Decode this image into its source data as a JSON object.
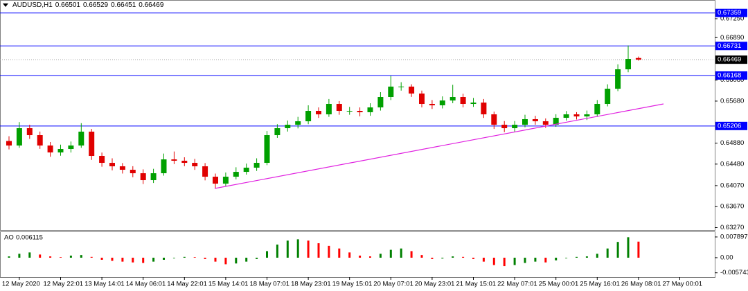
{
  "chart_data": {
    "type": "candlestick",
    "title": "AUDUSD,H1",
    "categories": [
      null,
      "12 May 2020",
      null,
      null,
      null,
      "12 May 22:01",
      null,
      null,
      null,
      "13 May 14:01",
      null,
      null,
      null,
      "14 May 06:01",
      null,
      null,
      null,
      "14 May 22:01",
      null,
      null,
      null,
      "15 May 14:01",
      null,
      null,
      null,
      "18 May 07:01",
      null,
      null,
      null,
      "18 May 23:01",
      null,
      null,
      null,
      "19 May 15:01",
      null,
      null,
      null,
      "20 May 07:01",
      null,
      null,
      null,
      "20 May 23:01",
      null,
      null,
      null,
      "21 May 15:01",
      null,
      null,
      null,
      "22 May 07:01",
      null,
      null,
      null,
      "25 May 00:01",
      null,
      null,
      null,
      "25 May 16:01",
      null,
      null,
      null,
      "26 May 08:01",
      null,
      null,
      null,
      "27 May 00:01"
    ],
    "open": [
      0.6492,
      0.64834,
      0.65164,
      0.65032,
      0.64834,
      0.64702,
      0.64768,
      0.64834,
      0.65098,
      0.64636,
      0.64504,
      0.64438,
      0.64372,
      0.64306,
      0.64174,
      0.64306,
      0.6457,
      0.64544,
      0.64504,
      0.64438,
      0.6424,
      0.64108,
      0.6424,
      0.64332,
      0.64412,
      0.64504,
      0.65032,
      0.65164,
      0.6523,
      0.65296,
      0.65494,
      0.65428,
      0.65626,
      0.65494,
      0.65494,
      0.65468,
      0.6556,
      0.65758,
      0.65956,
      0.65956,
      0.65824,
      0.65626,
      0.656,
      0.65692,
      0.65758,
      0.65626,
      0.65652,
      0.65428,
      0.6523,
      0.65164,
      0.6523,
      0.65336,
      0.65296,
      0.6523,
      0.65362,
      0.65428,
      0.65388,
      0.65428,
      0.65626,
      0.65916,
      0.66286,
      0.66501,
      null,
      null,
      null,
      null
    ],
    "high": [
      0.6501,
      0.6528,
      0.6523,
      0.651,
      0.649,
      0.6485,
      0.6491,
      0.6526,
      0.6515,
      0.647,
      0.6459,
      0.645,
      0.6444,
      0.6438,
      0.6439,
      0.6468,
      0.6472,
      0.6461,
      0.6458,
      0.645,
      0.643,
      0.6432,
      0.6442,
      0.6449,
      0.6459,
      0.6511,
      0.6524,
      0.6531,
      0.6538,
      0.656,
      0.6556,
      0.6572,
      0.6568,
      0.6557,
      0.6556,
      0.6564,
      0.6585,
      0.6616,
      0.6604,
      0.66,
      0.6588,
      0.657,
      0.6577,
      0.6599,
      0.6582,
      0.6574,
      0.6572,
      0.6548,
      0.653,
      0.653,
      0.6542,
      0.654,
      0.6535,
      0.6543,
      0.6549,
      0.6547,
      0.655,
      0.657,
      0.66,
      0.6638,
      0.6674,
      0.66529,
      null,
      null,
      null,
      null
    ],
    "low": [
      0.6476,
      0.6479,
      0.6496,
      0.6477,
      0.6462,
      0.6464,
      0.647,
      0.6479,
      0.6456,
      0.6443,
      0.6436,
      0.643,
      0.6423,
      0.641,
      0.6412,
      0.6426,
      0.6448,
      0.6444,
      0.6437,
      0.6417,
      0.6402,
      0.6406,
      0.6419,
      0.6428,
      0.6435,
      0.6446,
      0.6498,
      0.651,
      0.6516,
      0.6524,
      0.6536,
      0.6538,
      0.6542,
      0.6542,
      0.6539,
      0.654,
      0.655,
      0.657,
      0.6588,
      0.6576,
      0.6556,
      0.6553,
      0.6554,
      0.6564,
      0.6556,
      0.6557,
      0.6536,
      0.6515,
      0.6509,
      0.651,
      0.6518,
      0.6523,
      0.6517,
      0.6519,
      0.6531,
      0.6533,
      0.6532,
      0.6538,
      0.6558,
      0.6587,
      0.6623,
      0.66451,
      null,
      null,
      null,
      null
    ],
    "close": [
      0.64834,
      0.65164,
      0.65032,
      0.64834,
      0.64702,
      0.64768,
      0.64834,
      0.65098,
      0.64636,
      0.64504,
      0.64438,
      0.64372,
      0.64306,
      0.64174,
      0.64306,
      0.6457,
      0.64544,
      0.64504,
      0.64438,
      0.6424,
      0.64108,
      0.6424,
      0.64332,
      0.64412,
      0.64504,
      0.65032,
      0.65164,
      0.6523,
      0.65296,
      0.65494,
      0.65428,
      0.65626,
      0.65494,
      0.65494,
      0.65468,
      0.6556,
      0.65758,
      0.65956,
      0.65956,
      0.65824,
      0.65626,
      0.656,
      0.65692,
      0.65758,
      0.65626,
      0.65652,
      0.65428,
      0.6523,
      0.65164,
      0.6523,
      0.65336,
      0.65296,
      0.6523,
      0.65362,
      0.65428,
      0.65388,
      0.65428,
      0.65626,
      0.65916,
      0.66286,
      0.66484,
      0.66469,
      null,
      null,
      null,
      null
    ],
    "up_color": "#00a000",
    "down_color": "#e00000",
    "ylim": [
      0.63224,
      0.67606
    ],
    "yticks": [
      {
        "value": 0.6725,
        "label": "0.67250"
      },
      {
        "value": 0.6689,
        "label": "0.66890"
      },
      {
        "value": 0.6608,
        "label": "0.66080"
      },
      {
        "value": 0.6568,
        "label": "0.65680"
      },
      {
        "value": 0.6488,
        "label": "0.64880"
      },
      {
        "value": 0.6448,
        "label": "0.64480"
      },
      {
        "value": 0.6407,
        "label": "0.64070"
      },
      {
        "value": 0.6367,
        "label": "0.63670"
      },
      {
        "value": 0.6327,
        "label": "0.63270"
      }
    ],
    "levels": [
      0.67359,
      0.66731,
      0.66168,
      0.65206
    ],
    "level_color": "#0000ff",
    "indicator": {
      "type": "bar",
      "name": "AO",
      "values": [
        0.0005,
        0.0015,
        0.002,
        0.0012,
        0.0005,
        0.0002,
        0.0008,
        0.001,
        0.0003,
        -0.0008,
        -0.0012,
        -0.0015,
        -0.0018,
        -0.002,
        -0.0015,
        -0.0008,
        -0.0002,
        0.0003,
        0.0002,
        -0.0005,
        -0.0015,
        -0.0025,
        -0.0022,
        -0.0015,
        -0.0005,
        0.0025,
        0.005,
        0.0065,
        0.007,
        0.0065,
        0.0055,
        0.0045,
        0.0035,
        0.002,
        0.0008,
        0.0005,
        0.0015,
        0.003,
        0.0035,
        0.0025,
        0.001,
        -0.0005,
        -0.0003,
        0.0005,
        0.0003,
        -0.0005,
        -0.0015,
        -0.0028,
        -0.0032,
        -0.0028,
        -0.002,
        -0.0015,
        -0.0018,
        -0.001,
        -0.0002,
        0.0003,
        0.0005,
        0.0015,
        0.0035,
        0.006,
        0.0078,
        0.006115,
        null,
        null,
        null,
        null
      ],
      "ylim": [
        -0.0074,
        0.01
      ],
      "yticks": [
        0.007897,
        {
          "value": 0,
          "label": "0.00"
        },
        -0.005743
      ],
      "up_color": "#008000",
      "down_color": "#ff0000"
    }
  }
}
